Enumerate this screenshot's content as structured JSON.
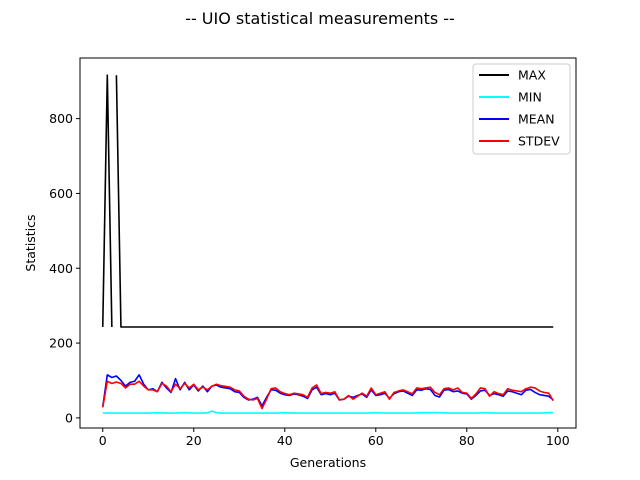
{
  "chart_data": {
    "type": "line",
    "title": "-- UIO statistical measurements --",
    "xlabel": "Generations",
    "ylabel": "Statistics",
    "xlim": [
      -5,
      104
    ],
    "ylim": [
      -27,
      962
    ],
    "xticks": [
      0,
      20,
      40,
      60,
      80,
      100
    ],
    "yticks": [
      0,
      200,
      400,
      600,
      800
    ],
    "grid": false,
    "legend_position": "top-right",
    "series": [
      {
        "name": "MAX",
        "color": "#000000",
        "segments": [
          {
            "x": [
              0,
              1,
              2
            ],
            "y": [
              243,
              916,
              243
            ]
          },
          {
            "x": [
              3,
              4,
              5,
              10,
              20,
              30,
              40,
              50,
              60,
              70,
              80,
              90,
              99
            ],
            "y": [
              916,
              243,
              243,
              243,
              243,
              243,
              243,
              243,
              243,
              243,
              243,
              243,
              243
            ]
          }
        ]
      },
      {
        "name": "MIN",
        "color": "#00ffff",
        "x": [
          0,
          2,
          4,
          6,
          8,
          10,
          12,
          14,
          16,
          18,
          20,
          22,
          23,
          24,
          25,
          26,
          28,
          30,
          32,
          34,
          36,
          38,
          40,
          42,
          44,
          46,
          48,
          50,
          52,
          54,
          56,
          58,
          60,
          62,
          64,
          66,
          68,
          70,
          72,
          74,
          76,
          78,
          80,
          82,
          84,
          86,
          88,
          90,
          92,
          94,
          96,
          98,
          99
        ],
        "y": [
          13,
          13,
          13,
          13,
          13,
          13,
          14,
          13,
          13,
          14,
          13,
          13,
          14,
          18,
          14,
          13,
          13,
          13,
          13,
          13,
          13,
          13,
          14,
          13,
          13,
          13,
          13,
          13,
          13,
          13,
          13,
          13,
          14,
          13,
          13,
          13,
          13,
          14,
          14,
          14,
          13,
          13,
          13,
          13,
          14,
          13,
          13,
          13,
          13,
          13,
          13,
          14,
          14
        ]
      },
      {
        "name": "MEAN",
        "color": "#0000ff",
        "x": [
          0,
          1,
          2,
          3,
          4,
          5,
          6,
          7,
          8,
          9,
          10,
          11,
          12,
          13,
          14,
          15,
          16,
          17,
          18,
          19,
          20,
          21,
          22,
          23,
          24,
          25,
          26,
          27,
          28,
          29,
          30,
          31,
          32,
          33,
          34,
          35,
          36,
          37,
          38,
          39,
          40,
          41,
          42,
          43,
          44,
          45,
          46,
          47,
          48,
          49,
          50,
          51,
          52,
          53,
          54,
          55,
          56,
          57,
          58,
          59,
          60,
          61,
          62,
          63,
          64,
          65,
          66,
          67,
          68,
          69,
          70,
          71,
          72,
          73,
          74,
          75,
          76,
          77,
          78,
          79,
          80,
          81,
          82,
          83,
          84,
          85,
          86,
          87,
          88,
          89,
          90,
          91,
          92,
          93,
          94,
          95,
          96,
          97,
          98,
          99
        ],
        "y": [
          30,
          115,
          108,
          112,
          100,
          85,
          95,
          98,
          115,
          90,
          75,
          78,
          70,
          95,
          80,
          68,
          105,
          75,
          95,
          75,
          88,
          72,
          85,
          70,
          85,
          88,
          82,
          80,
          78,
          70,
          68,
          55,
          48,
          50,
          55,
          32,
          55,
          75,
          74,
          66,
          62,
          60,
          64,
          62,
          58,
          52,
          75,
          82,
          62,
          65,
          62,
          66,
          48,
          50,
          58,
          55,
          60,
          64,
          55,
          75,
          60,
          62,
          66,
          52,
          65,
          70,
          72,
          66,
          60,
          75,
          74,
          78,
          76,
          60,
          56,
          74,
          76,
          70,
          72,
          66,
          64,
          50,
          60,
          72,
          74,
          60,
          65,
          62,
          58,
          72,
          70,
          66,
          62,
          74,
          76,
          68,
          62,
          60,
          58,
          48
        ]
      },
      {
        "name": "STDEV",
        "color": "#ff0000",
        "x": [
          0,
          1,
          2,
          3,
          4,
          5,
          6,
          7,
          8,
          9,
          10,
          11,
          12,
          13,
          14,
          15,
          16,
          17,
          18,
          19,
          20,
          21,
          22,
          23,
          24,
          25,
          26,
          27,
          28,
          29,
          30,
          31,
          32,
          33,
          34,
          35,
          36,
          37,
          38,
          39,
          40,
          41,
          42,
          43,
          44,
          45,
          46,
          47,
          48,
          49,
          50,
          51,
          52,
          53,
          54,
          55,
          56,
          57,
          58,
          59,
          60,
          61,
          62,
          63,
          64,
          65,
          66,
          67,
          68,
          69,
          70,
          71,
          72,
          73,
          74,
          75,
          76,
          77,
          78,
          79,
          80,
          81,
          82,
          83,
          84,
          85,
          86,
          87,
          88,
          89,
          90,
          91,
          92,
          93,
          94,
          95,
          96,
          97,
          98,
          99
        ],
        "y": [
          28,
          98,
          92,
          96,
          92,
          80,
          90,
          90,
          98,
          85,
          75,
          75,
          70,
          92,
          85,
          70,
          90,
          78,
          92,
          80,
          90,
          75,
          82,
          75,
          85,
          90,
          86,
          84,
          82,
          75,
          72,
          58,
          50,
          48,
          52,
          25,
          50,
          78,
          80,
          70,
          65,
          62,
          66,
          64,
          62,
          55,
          80,
          88,
          65,
          68,
          66,
          70,
          48,
          50,
          60,
          50,
          58,
          66,
          58,
          80,
          62,
          66,
          70,
          50,
          68,
          72,
          75,
          70,
          64,
          80,
          78,
          80,
          82,
          68,
          62,
          78,
          80,
          75,
          80,
          68,
          66,
          52,
          64,
          80,
          78,
          58,
          70,
          65,
          62,
          78,
          74,
          72,
          70,
          78,
          82,
          80,
          72,
          68,
          66,
          46
        ]
      }
    ]
  }
}
